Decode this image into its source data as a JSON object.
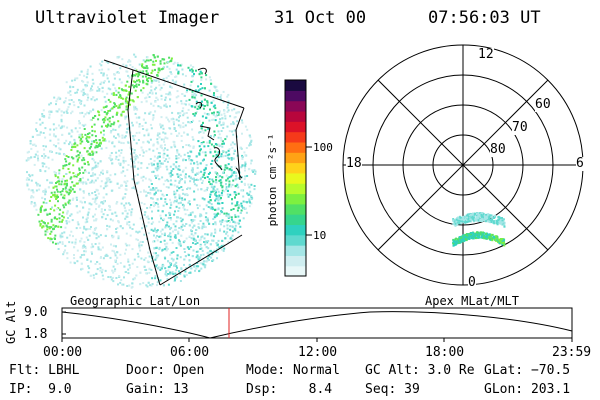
{
  "header": {
    "title": "Ultraviolet Imager",
    "date": "31 Oct 00",
    "time": "07:56:03 UT"
  },
  "panels": {
    "left_caption": "Geographic Lat/Lon",
    "right_caption": "Apex MLat/MLT"
  },
  "colorbar": {
    "unit_label": "photon cm⁻²s⁻¹",
    "tick_100": "100",
    "tick_10": "10",
    "colors": [
      "#e8f8f8",
      "#cfeef0",
      "#a5e6e6",
      "#5fd9cf",
      "#2fd1bf",
      "#36d58d",
      "#51e065",
      "#7ef040",
      "#b8fb2d",
      "#e9f81e",
      "#ffd21a",
      "#ffa215",
      "#ff6e12",
      "#f53a1a",
      "#dc1228",
      "#b8063c",
      "#8a0756",
      "#4d0a62",
      "#1a0a40"
    ]
  },
  "polar": {
    "mlt_labels": {
      "top": "12",
      "bottom": "0",
      "left": "18",
      "right": "6"
    },
    "lat_labels": [
      "60",
      "70",
      "80"
    ]
  },
  "timeline": {
    "ylabel": "GC Alt",
    "ytick_top": "9.0",
    "ytick_bottom": "1.8",
    "xticks": [
      "00:00",
      "06:00",
      "12:00",
      "18:00",
      "23:59"
    ],
    "marker_color": "#e02020"
  },
  "info": {
    "flt": "Flt: LBHL",
    "ip": "IP:  9.0",
    "door": "Door: Open",
    "gain": "Gain: 13",
    "mode": "Mode: Normal",
    "dsp": "Dsp:    8.4",
    "gcalt": "GC Alt: 3.0 Re",
    "seq": "Seq: 39",
    "glat": "GLat: −70.5",
    "glon": "GLon: 203.1"
  }
}
